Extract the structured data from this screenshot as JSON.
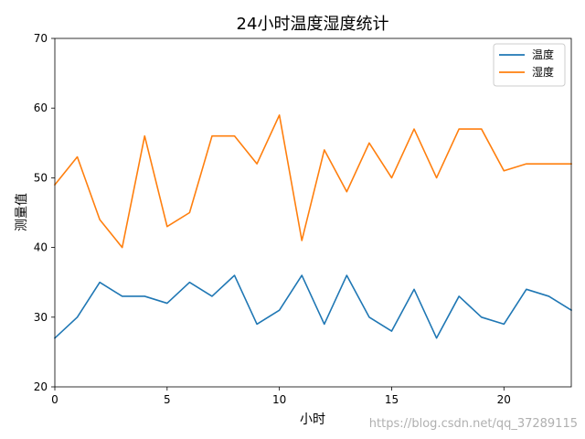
{
  "chart_data": {
    "type": "line",
    "title": "24小时温度湿度统计",
    "xlabel": "小时",
    "ylabel": "测量值",
    "xlim": [
      0,
      23
    ],
    "ylim": [
      20,
      70
    ],
    "x_ticks": [
      0,
      5,
      10,
      15,
      20
    ],
    "y_ticks": [
      20,
      30,
      40,
      50,
      60,
      70
    ],
    "grid": false,
    "legend": "top-right",
    "x": [
      0,
      1,
      2,
      3,
      4,
      5,
      6,
      7,
      8,
      9,
      10,
      11,
      12,
      13,
      14,
      15,
      16,
      17,
      18,
      19,
      20,
      21,
      22,
      23
    ],
    "series": [
      {
        "name": "温度",
        "color": "#1f77b4",
        "values": [
          27,
          30,
          35,
          33,
          33,
          32,
          35,
          33,
          36,
          29,
          31,
          36,
          29,
          36,
          30,
          28,
          34,
          27,
          33,
          30,
          29,
          34,
          33,
          31
        ]
      },
      {
        "name": "湿度",
        "color": "#ff7f0e",
        "values": [
          49,
          53,
          44,
          40,
          56,
          43,
          45,
          56,
          56,
          52,
          59,
          41,
          54,
          48,
          55,
          50,
          57,
          50,
          57,
          57,
          51,
          52,
          52,
          52
        ]
      }
    ]
  },
  "watermark": "https://blog.csdn.net/qq_37289115"
}
